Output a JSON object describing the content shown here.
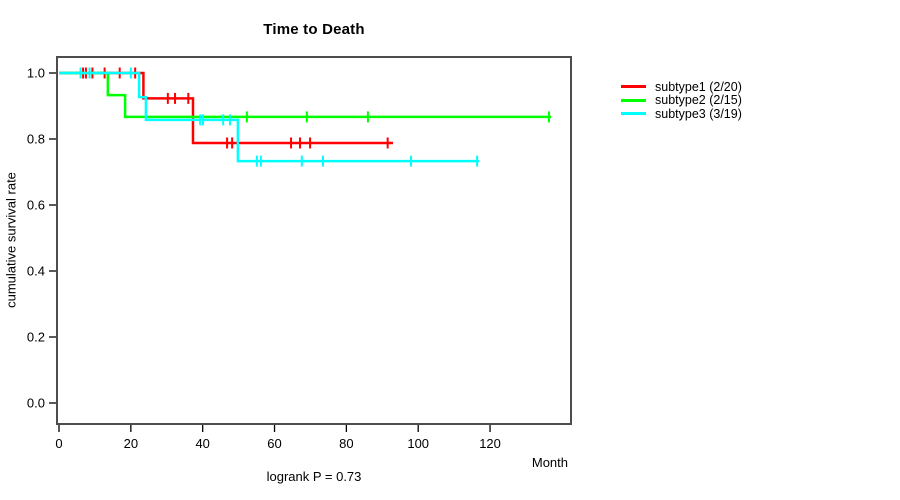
{
  "title": "Time to Death",
  "subtitle": "logrank P = 0.73",
  "chart_data": {
    "type": "line",
    "variant": "kaplan-meier-step",
    "title": "Time to Death",
    "xlabel": "Month",
    "ylabel": "cumulative survival rate",
    "annotation": "logrank P = 0.73",
    "xlim": [
      0,
      142
    ],
    "ylim": [
      0.0,
      1.0
    ],
    "x_ticks": [
      0,
      20,
      40,
      60,
      80,
      100,
      120
    ],
    "y_ticks": [
      "0.0",
      "0.2",
      "0.4",
      "0.6",
      "0.8",
      "1.0"
    ],
    "grid": false,
    "legend_position": "right",
    "series": [
      {
        "name": "subtype1",
        "label": "subtype1 (2/20)",
        "color": "#ff0000",
        "start_survival": 1.0,
        "steps": [
          {
            "t": 23.5,
            "s": 0.923
          },
          {
            "t": 37.3,
            "s": 0.788
          }
        ],
        "end_t": 93,
        "censors": [
          {
            "t": 6.7,
            "s": 1.0
          },
          {
            "t": 7.5,
            "s": 1.0
          },
          {
            "t": 9.3,
            "s": 1.0
          },
          {
            "t": 12.7,
            "s": 1.0
          },
          {
            "t": 16.9,
            "s": 1.0
          },
          {
            "t": 21.2,
            "s": 1.0
          },
          {
            "t": 30.3,
            "s": 0.923
          },
          {
            "t": 32.3,
            "s": 0.923
          },
          {
            "t": 36.0,
            "s": 0.923
          },
          {
            "t": 46.8,
            "s": 0.788
          },
          {
            "t": 48.2,
            "s": 0.788
          },
          {
            "t": 64.6,
            "s": 0.788
          },
          {
            "t": 67.1,
            "s": 0.788
          },
          {
            "t": 69.9,
            "s": 0.788
          },
          {
            "t": 91.5,
            "s": 0.788
          }
        ]
      },
      {
        "name": "subtype2",
        "label": "subtype2 (2/15)",
        "color": "#00ff00",
        "start_survival": 1.0,
        "steps": [
          {
            "t": 13.6,
            "s": 0.933
          },
          {
            "t": 18.4,
            "s": 0.867
          }
        ],
        "end_t": 137,
        "censors": [
          {
            "t": 52.3,
            "s": 0.867
          },
          {
            "t": 69.0,
            "s": 0.867
          },
          {
            "t": 86.0,
            "s": 0.867
          },
          {
            "t": 136.4,
            "s": 0.867
          }
        ]
      },
      {
        "name": "subtype3",
        "label": "subtype3 (3/19)",
        "color": "#00ffff",
        "start_survival": 1.0,
        "steps": [
          {
            "t": 22.3,
            "s": 0.927
          },
          {
            "t": 24.2,
            "s": 0.858
          },
          {
            "t": 49.8,
            "s": 0.733
          }
        ],
        "end_t": 117,
        "censors": [
          {
            "t": 6.0,
            "s": 1.0
          },
          {
            "t": 8.5,
            "s": 1.0
          },
          {
            "t": 20.0,
            "s": 1.0
          },
          {
            "t": 39.3,
            "s": 0.858
          },
          {
            "t": 40.1,
            "s": 0.858
          },
          {
            "t": 45.7,
            "s": 0.858
          },
          {
            "t": 47.6,
            "s": 0.858
          },
          {
            "t": 55.1,
            "s": 0.733
          },
          {
            "t": 56.2,
            "s": 0.733
          },
          {
            "t": 67.6,
            "s": 0.733
          },
          {
            "t": 73.5,
            "s": 0.733
          },
          {
            "t": 98.0,
            "s": 0.733
          },
          {
            "t": 116.4,
            "s": 0.733
          }
        ]
      }
    ],
    "colors": {
      "axis_box": "#4d4d4d",
      "tick": "#000000",
      "text": "#000000"
    }
  }
}
